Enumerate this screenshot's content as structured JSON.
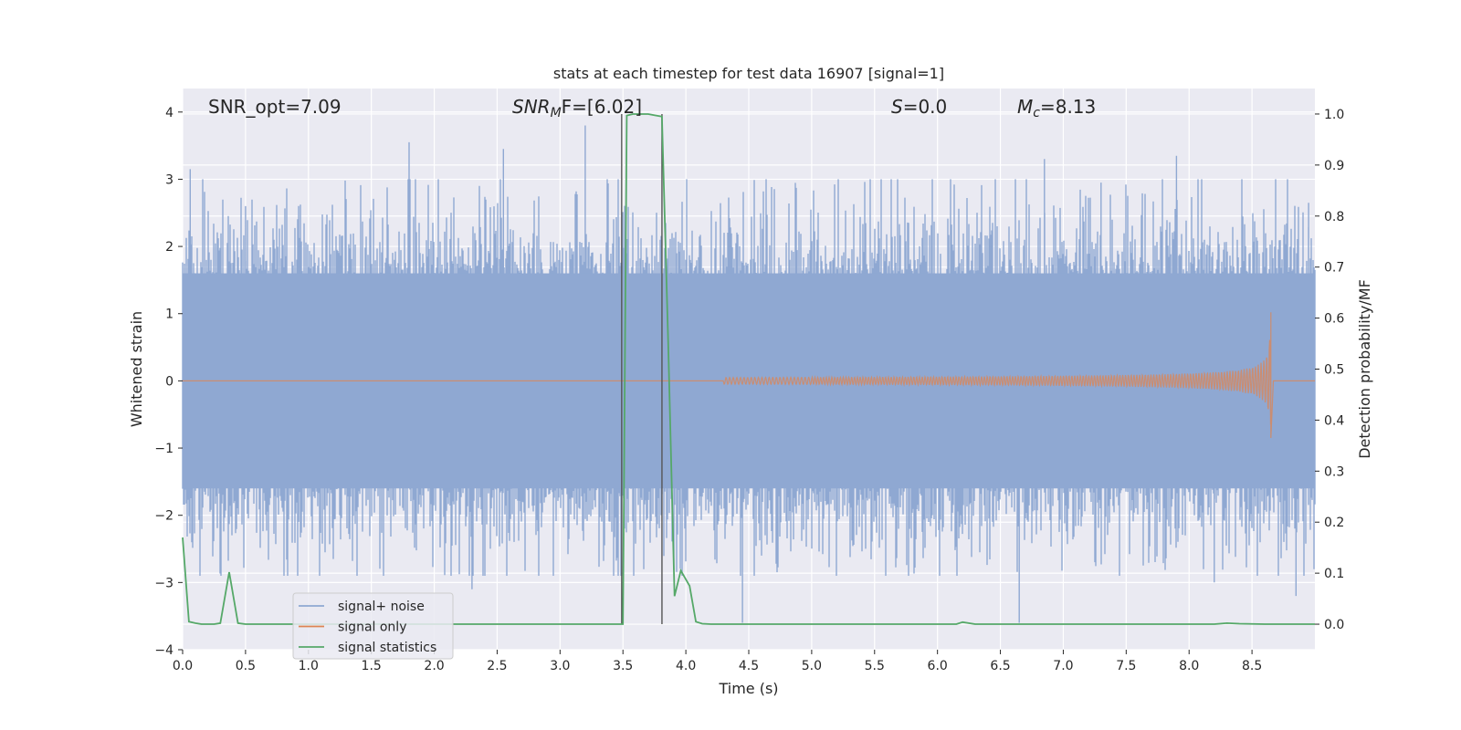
{
  "chart_data": {
    "type": "line",
    "title": "stats at each timestep for test data 16907 [signal=1]",
    "xlabel": "Time (s)",
    "ylabel_left": "Whitened strain",
    "ylabel_right": "Detection probability/MF",
    "xlim": [
      0.0,
      9.0
    ],
    "ylim_left": [
      -4.0,
      4.35
    ],
    "ylim_right": [
      -0.05,
      1.05
    ],
    "x_ticks": [
      "0.0",
      "0.5",
      "1.0",
      "1.5",
      "2.0",
      "2.5",
      "3.0",
      "3.5",
      "4.0",
      "4.5",
      "5.0",
      "5.5",
      "6.0",
      "6.5",
      "7.0",
      "7.5",
      "8.0",
      "8.5"
    ],
    "y_left_ticks": [
      "4",
      "3",
      "2",
      "1",
      "0",
      "−1",
      "−2",
      "−3",
      "−4"
    ],
    "y_right_ticks": [
      "1.0",
      "0.9",
      "0.8",
      "0.7",
      "0.6",
      "0.5",
      "0.4",
      "0.3",
      "0.2",
      "0.1",
      "0.0"
    ],
    "grid": true,
    "legend_position": "lower-left",
    "annotations": {
      "snr_opt": "SNR_opt=7.09",
      "snr_mf_main": "SNR",
      "snr_mf_sub": "M",
      "snr_mf_rest": "F=[6.02]",
      "s_main": "S",
      "s_rest": "=0.0",
      "mc_main": "M",
      "mc_sub": "c",
      "mc_rest": "=8.13"
    },
    "vlines_x": [
      3.49,
      3.81
    ],
    "series": [
      {
        "name": "signal+ noise",
        "color": "#8fa8d2",
        "axis": "left",
        "description_values": {
          "duration_s": 9.0,
          "core_band": [
            -1.6,
            1.6
          ],
          "spikes": [
            [
              0.06,
              3.15
            ],
            [
              0.5,
              2.6
            ],
            [
              1.8,
              3.55
            ],
            [
              2.55,
              3.45
            ],
            [
              3.2,
              3.8
            ],
            [
              6.85,
              3.3
            ],
            [
              7.3,
              2.95
            ],
            [
              7.9,
              3.35
            ],
            [
              8.95,
              2.65
            ],
            [
              0.3,
              -2.5
            ],
            [
              2.3,
              -3.1
            ],
            [
              4.45,
              -3.6
            ],
            [
              6.65,
              -3.6
            ],
            [
              8.2,
              -3.0
            ],
            [
              8.85,
              -3.2
            ]
          ]
        }
      },
      {
        "name": "signal only",
        "color": "#dd8452",
        "axis": "left",
        "description_values": {
          "chirp_start_s": 4.3,
          "merger_s": 8.65,
          "peak_pos": 1.02,
          "peak_neg": -0.85
        }
      },
      {
        "name": "signal statistics",
        "color": "#55a868",
        "axis": "right",
        "x": [
          0.0,
          0.05,
          0.1,
          0.15,
          0.2,
          0.25,
          0.3,
          0.37,
          0.44,
          0.5,
          0.6,
          1.0,
          2.0,
          3.0,
          3.47,
          3.5,
          3.53,
          3.58,
          3.7,
          3.81,
          3.86,
          3.91,
          3.96,
          4.03,
          4.08,
          4.13,
          4.2,
          4.5,
          6.1,
          6.15,
          6.2,
          6.3,
          7.0,
          8.2,
          8.3,
          8.4,
          8.6,
          9.0
        ],
        "values": [
          0.17,
          0.005,
          0.002,
          0.0,
          0.0,
          0.0,
          0.002,
          0.102,
          0.002,
          0.0,
          0.0,
          0.0,
          0.0,
          0.0,
          0.0,
          0.0,
          0.997,
          1.0,
          1.0,
          0.995,
          0.55,
          0.055,
          0.105,
          0.075,
          0.005,
          0.001,
          0.0,
          0.0,
          0.0,
          0.0,
          0.004,
          0.0,
          0.0,
          0.0,
          0.002,
          0.001,
          0.0,
          0.0
        ]
      }
    ]
  }
}
